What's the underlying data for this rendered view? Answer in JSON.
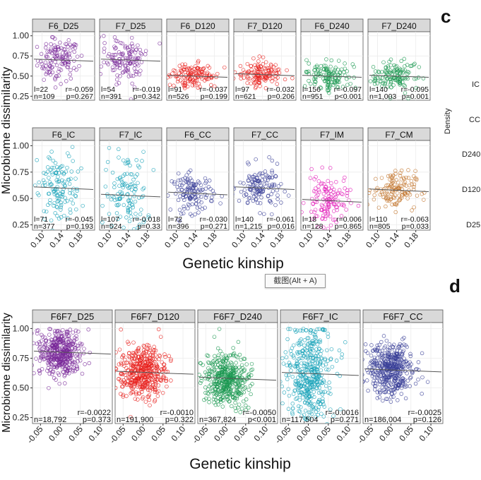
{
  "figure": {
    "letters": {
      "c": "c",
      "d": "d"
    },
    "side_labels": {
      "density": "Density",
      "ic": "IC",
      "cc": "CC",
      "d240": "D240",
      "d120": "D120",
      "d25": "D25"
    },
    "tooltip": "截图(Alt + A)"
  },
  "chart_data": [
    {
      "type": "scatter",
      "ylabel": "Microbiome dissimilarity",
      "xlabel": "Genetic kinship",
      "x_ticks": [
        "0.10",
        "0.14",
        "0.18"
      ],
      "xlim": [
        0.08,
        0.21
      ],
      "y_ticks": [
        "0.25",
        "0.50",
        "0.75",
        "1.00"
      ],
      "ylim": [
        0.2,
        1.05
      ],
      "grid": true,
      "panels": [
        {
          "title": "F6_D25",
          "color": "#7a2a9a",
          "l": "l=22",
          "n": "n=109",
          "r": "r=-0.059",
          "p": "p=0.267",
          "y_mean": 0.7,
          "y_spread": 0.13
        },
        {
          "title": "F7_D25",
          "color": "#7a2a9a",
          "l": "l=54",
          "n": "n=391",
          "r": "r=-0.019",
          "p": "p=0.342",
          "y_mean": 0.7,
          "y_spread": 0.14
        },
        {
          "title": "F6_D120",
          "color": "#e8201c",
          "l": "l=91",
          "n": "n=526",
          "r": "r=-0.037",
          "p": "p=0.199",
          "y_mean": 0.5,
          "y_spread": 0.07
        },
        {
          "title": "F7_D120",
          "color": "#e8201c",
          "l": "l=97",
          "n": "n=621",
          "r": "r=-0.032",
          "p": "p=0.206",
          "y_mean": 0.52,
          "y_spread": 0.08
        },
        {
          "title": "F6_D240",
          "color": "#1a9850",
          "l": "l=156",
          "n": "n=951",
          "r": "r=-0.097",
          "p": "p<0.001",
          "y_mean": 0.5,
          "y_spread": 0.1
        },
        {
          "title": "F7_D240",
          "color": "#1a9850",
          "l": "l=140",
          "n": "n=1,003",
          "r": "r=-0.095",
          "p": "p=0.001",
          "y_mean": 0.5,
          "y_spread": 0.1
        },
        {
          "title": "F6_IC",
          "color": "#17a2b8",
          "l": "l=71",
          "n": "n=377",
          "r": "r=-0.045",
          "p": "p=0.193",
          "y_mean": 0.6,
          "y_spread": 0.18
        },
        {
          "title": "F7_IC",
          "color": "#17a2b8",
          "l": "l=107",
          "n": "n=524",
          "r": "r=-0.018",
          "p": "p=0.33",
          "y_mean": 0.53,
          "y_spread": 0.2
        },
        {
          "title": "F6_CC",
          "color": "#3a3f98",
          "l": "l=72",
          "n": "n=396",
          "r": "r=-0.030",
          "p": "p=0.271",
          "y_mean": 0.55,
          "y_spread": 0.09
        },
        {
          "title": "F7_CC",
          "color": "#3a3f98",
          "l": "l=140",
          "n": "n=1,215",
          "r": "r=-0.061",
          "p": "p=0.016",
          "y_mean": 0.6,
          "y_spread": 0.1
        },
        {
          "title": "F7_IM",
          "color": "#e21bb8",
          "l": "l=18",
          "n": "n=128",
          "r": "r=0.006",
          "p": "p=0.865",
          "y_mean": 0.48,
          "y_spread": 0.12
        },
        {
          "title": "F7_CM",
          "color": "#c2742c",
          "l": "l=110",
          "n": "n=805",
          "r": "r=-0.063",
          "p": "p=0.033",
          "y_mean": 0.58,
          "y_spread": 0.09
        }
      ]
    },
    {
      "type": "scatter",
      "ylabel": "Microbiome dissimilarity",
      "xlabel": "Genetic kinship",
      "x_ticks": [
        "-0.05",
        "0.00",
        "0.05",
        "0.10"
      ],
      "xlim": [
        -0.07,
        0.13
      ],
      "y_ticks": [
        "0.25",
        "0.50",
        "0.75",
        "1.00"
      ],
      "ylim": [
        0.2,
        1.05
      ],
      "grid": true,
      "panels": [
        {
          "title": "F6F7_D25",
          "color": "#7a2a9a",
          "n": "n=18,792",
          "r": "r=-0.0022",
          "p": "p=0.373",
          "y_mean": 0.8,
          "y_spread": 0.1,
          "x_max": 0.1
        },
        {
          "title": "F6F7_D120",
          "color": "#e8201c",
          "n": "n=191,900",
          "r": "r=-0.0010",
          "p": "p=0.322",
          "y_mean": 0.63,
          "y_spread": 0.11,
          "x_max": 0.1
        },
        {
          "title": "F6F7_D240",
          "color": "#1a9850",
          "n": "n=367,824",
          "r": "r=-0.0050",
          "p": "p<0.001",
          "y_mean": 0.58,
          "y_spread": 0.11,
          "x_max": 0.1
        },
        {
          "title": "F6F7_IC",
          "color": "#17a2b8",
          "n": "n=117,504",
          "r": "r=-0.0016",
          "p": "p=0.271",
          "y_mean": 0.62,
          "y_spread": 0.22,
          "x_max": 0.11
        },
        {
          "title": "F6F7_CC",
          "color": "#3a3f98",
          "n": "n=186,004",
          "r": "r=-0.0025",
          "p": "p=0.126",
          "y_mean": 0.65,
          "y_spread": 0.11,
          "x_max": 0.1
        }
      ]
    }
  ]
}
